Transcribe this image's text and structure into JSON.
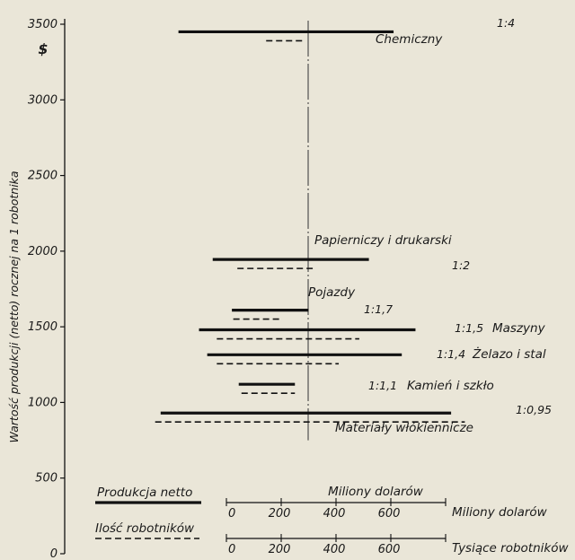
{
  "chart_data": {
    "type": "range-bar",
    "title": "",
    "ylabel": "Wartość produkcji (netto) rocznej na 1 robotnika",
    "yunit": "$",
    "ylim": [
      0,
      3500
    ],
    "yticks": [
      "3500",
      "3000",
      "2500",
      "2000",
      "1500",
      "1000",
      "500",
      "0"
    ],
    "scale_max": 800,
    "legend": {
      "net_production": "Produkcja netto",
      "workers": "Ilość robotników"
    },
    "scales": [
      {
        "name": "Miliony dolarów",
        "unit_label": "Miliony dolarów",
        "ticks": [
          "0",
          "200",
          "400",
          "600"
        ]
      },
      {
        "name": "Tysiące robotników",
        "unit_label": "Tysiące robotników",
        "ticks": [
          "0",
          "200",
          "400",
          "600"
        ]
      }
    ],
    "series": [
      {
        "name": "Produkcja netto",
        "style": "solid"
      },
      {
        "name": "Ilość robotników",
        "style": "dashed"
      }
    ],
    "industries": [
      {
        "label": "Chemiczny",
        "ratio": "1:4",
        "y": 3450,
        "solid": [
          -175,
          610
        ],
        "dashed": [
          145,
          280
        ]
      },
      {
        "label": "Papierniczy i drukarski",
        "ratio": "1:2",
        "y": 1945,
        "solid": [
          -50,
          520
        ],
        "dashed": [
          40,
          315
        ]
      },
      {
        "label": "Pojazdy",
        "ratio": "1:1,7",
        "y": 1610,
        "solid": [
          20,
          300
        ],
        "dashed": [
          25,
          195
        ]
      },
      {
        "label": "Maszyny",
        "ratio": "1:1,5",
        "y": 1480,
        "solid": [
          -100,
          690
        ],
        "dashed": [
          -35,
          485
        ]
      },
      {
        "label": "Żelazo i stal",
        "ratio": "1:1,4",
        "y": 1315,
        "solid": [
          -70,
          640
        ],
        "dashed": [
          -35,
          410
        ]
      },
      {
        "label": "Kamień i szkło",
        "ratio": "1:1,1",
        "y": 1120,
        "solid": [
          45,
          250
        ],
        "dashed": [
          55,
          250
        ]
      },
      {
        "label": "Materiały włókiennicze",
        "ratio": "1:0,95",
        "y": 930,
        "solid": [
          -240,
          820
        ],
        "dashed": [
          -260,
          870
        ]
      }
    ]
  },
  "colors": {
    "ink": "#111111",
    "background": "#eae6d8",
    "center": "#333333"
  }
}
